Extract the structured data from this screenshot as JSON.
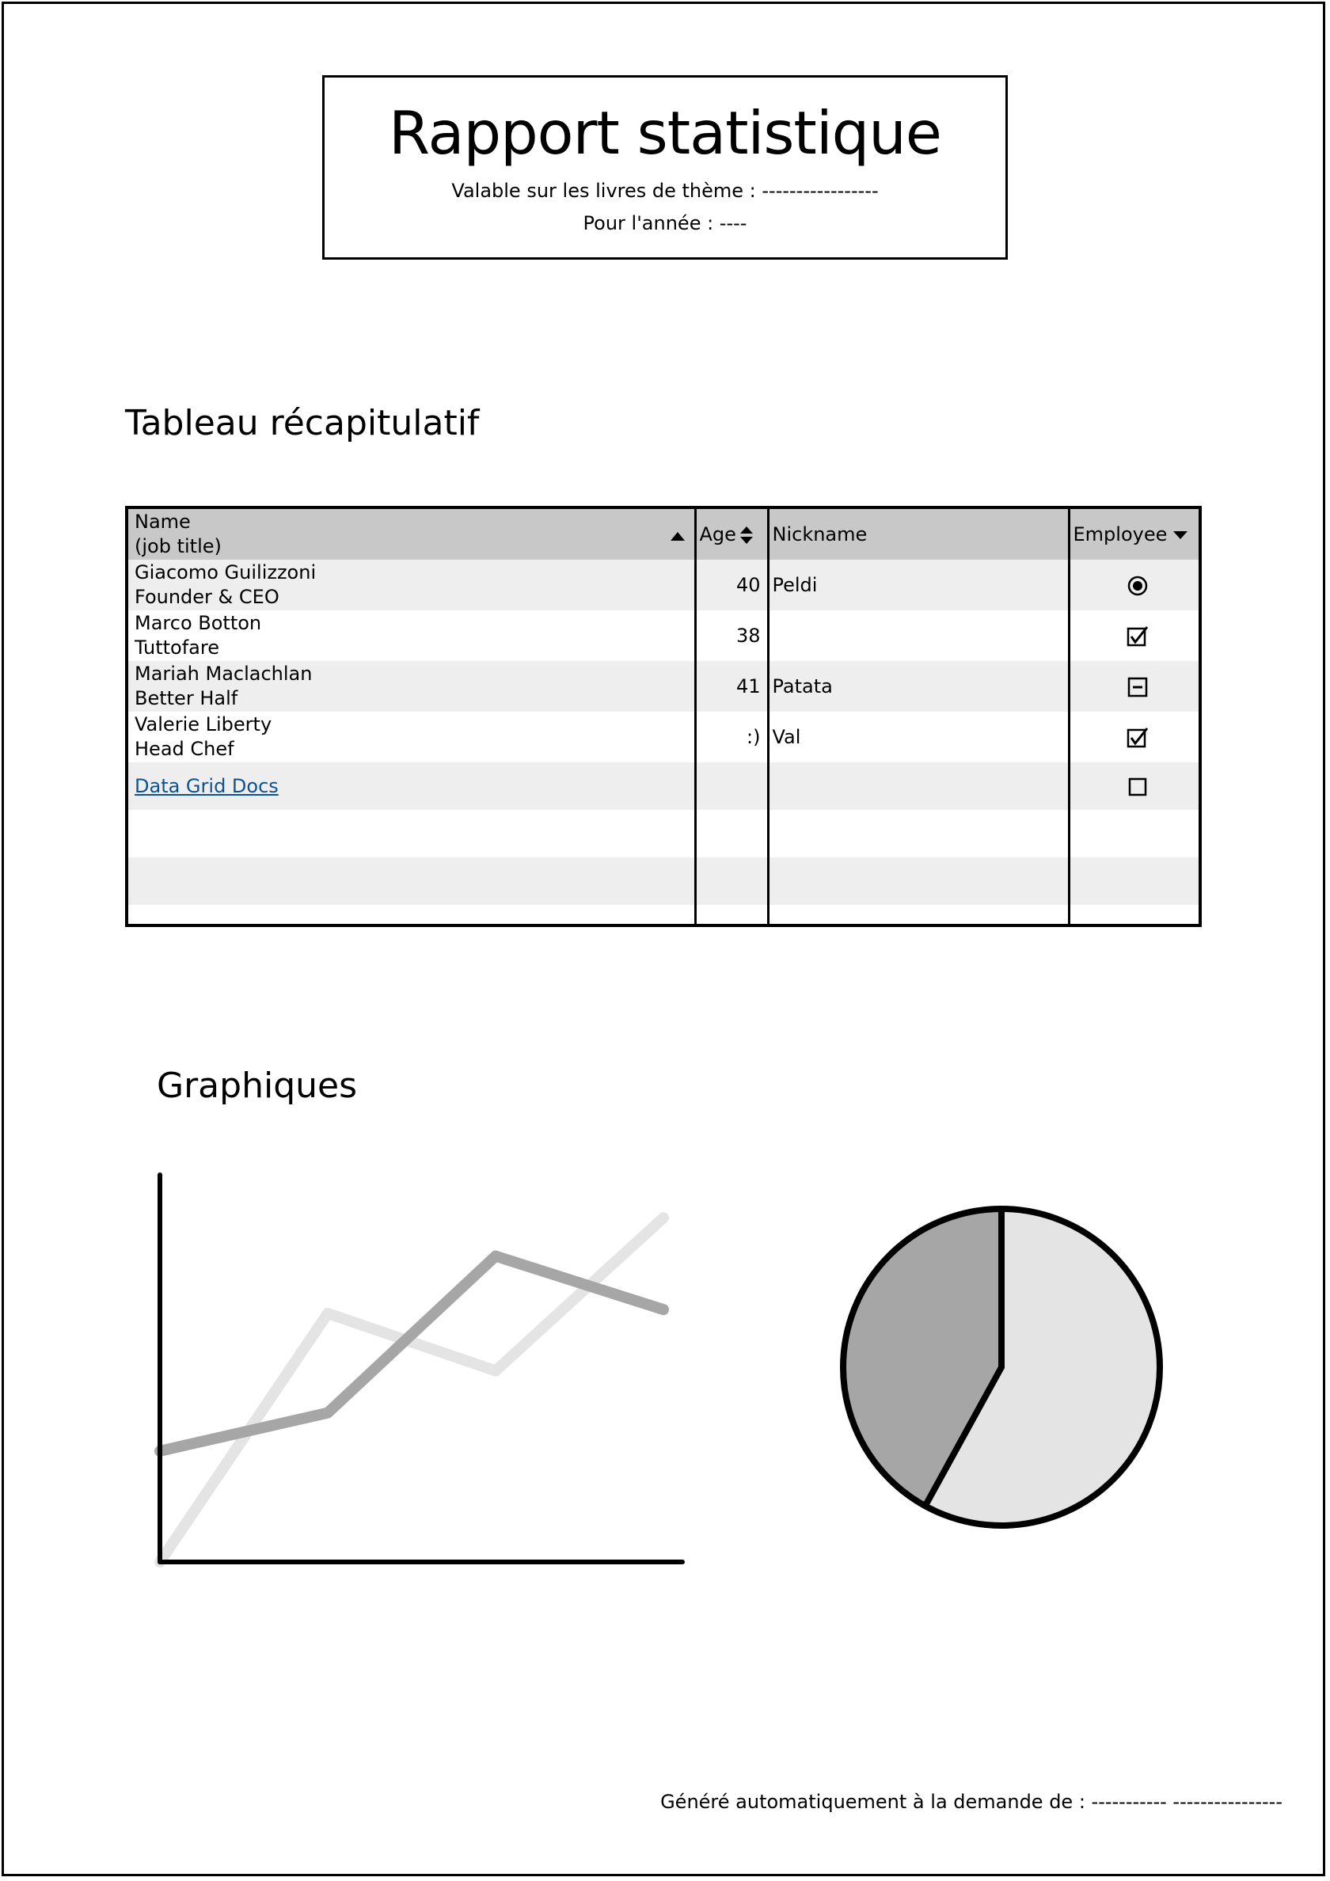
{
  "header": {
    "title": "Rapport statistique",
    "subtitle_theme": "Valable sur les livres de thème : -----------------",
    "subtitle_year": "Pour l'année : ----"
  },
  "sections": {
    "table_title": "Tableau récapitulatif",
    "charts_title": "Graphiques"
  },
  "grid": {
    "columns": {
      "name_line1": "Name",
      "name_line2": "(job title)",
      "age": "Age",
      "nickname": "Nickname",
      "employee": "Employee"
    },
    "rows": [
      {
        "name": "Giacomo Guilizzoni",
        "title": "Founder & CEO",
        "age": "40",
        "nickname": "Peldi",
        "employee": "radio-selected"
      },
      {
        "name": "Marco Botton",
        "title": "Tuttofare",
        "age": "38",
        "nickname": "",
        "employee": "checked"
      },
      {
        "name": "Mariah Maclachlan",
        "title": "Better Half",
        "age": "41",
        "nickname": "Patata",
        "employee": "indeterminate"
      },
      {
        "name": "Valerie Liberty",
        "title": "Head Chef",
        "age": ":)",
        "nickname": "Val",
        "employee": "checked"
      }
    ],
    "link_row": {
      "label": "Data Grid Docs",
      "employee": "unchecked"
    }
  },
  "footer": {
    "generated_by": "Généré automatiquement à la demande de : ----------- ----------------"
  },
  "colors": {
    "series_light": "#e4e4e4",
    "series_dark": "#a6a6a6",
    "header_bg": "#c8c8c8",
    "row_alt": "#eeeeee",
    "link": "#0b5394"
  },
  "chart_data": [
    {
      "type": "line",
      "title": "",
      "xlabel": "",
      "ylabel": "",
      "x": [
        0,
        1,
        2,
        3
      ],
      "series": [
        {
          "values": [
            0,
            65,
            50,
            90
          ],
          "color": "#e4e4e4"
        },
        {
          "values": [
            29,
            39,
            80,
            66
          ],
          "color": "#a6a6a6"
        }
      ],
      "ylim": [
        0,
        100
      ],
      "grid": false
    },
    {
      "type": "pie",
      "title": "",
      "slices": [
        {
          "value": 58,
          "color": "#e4e4e4"
        },
        {
          "value": 42,
          "color": "#a6a6a6"
        }
      ]
    }
  ]
}
